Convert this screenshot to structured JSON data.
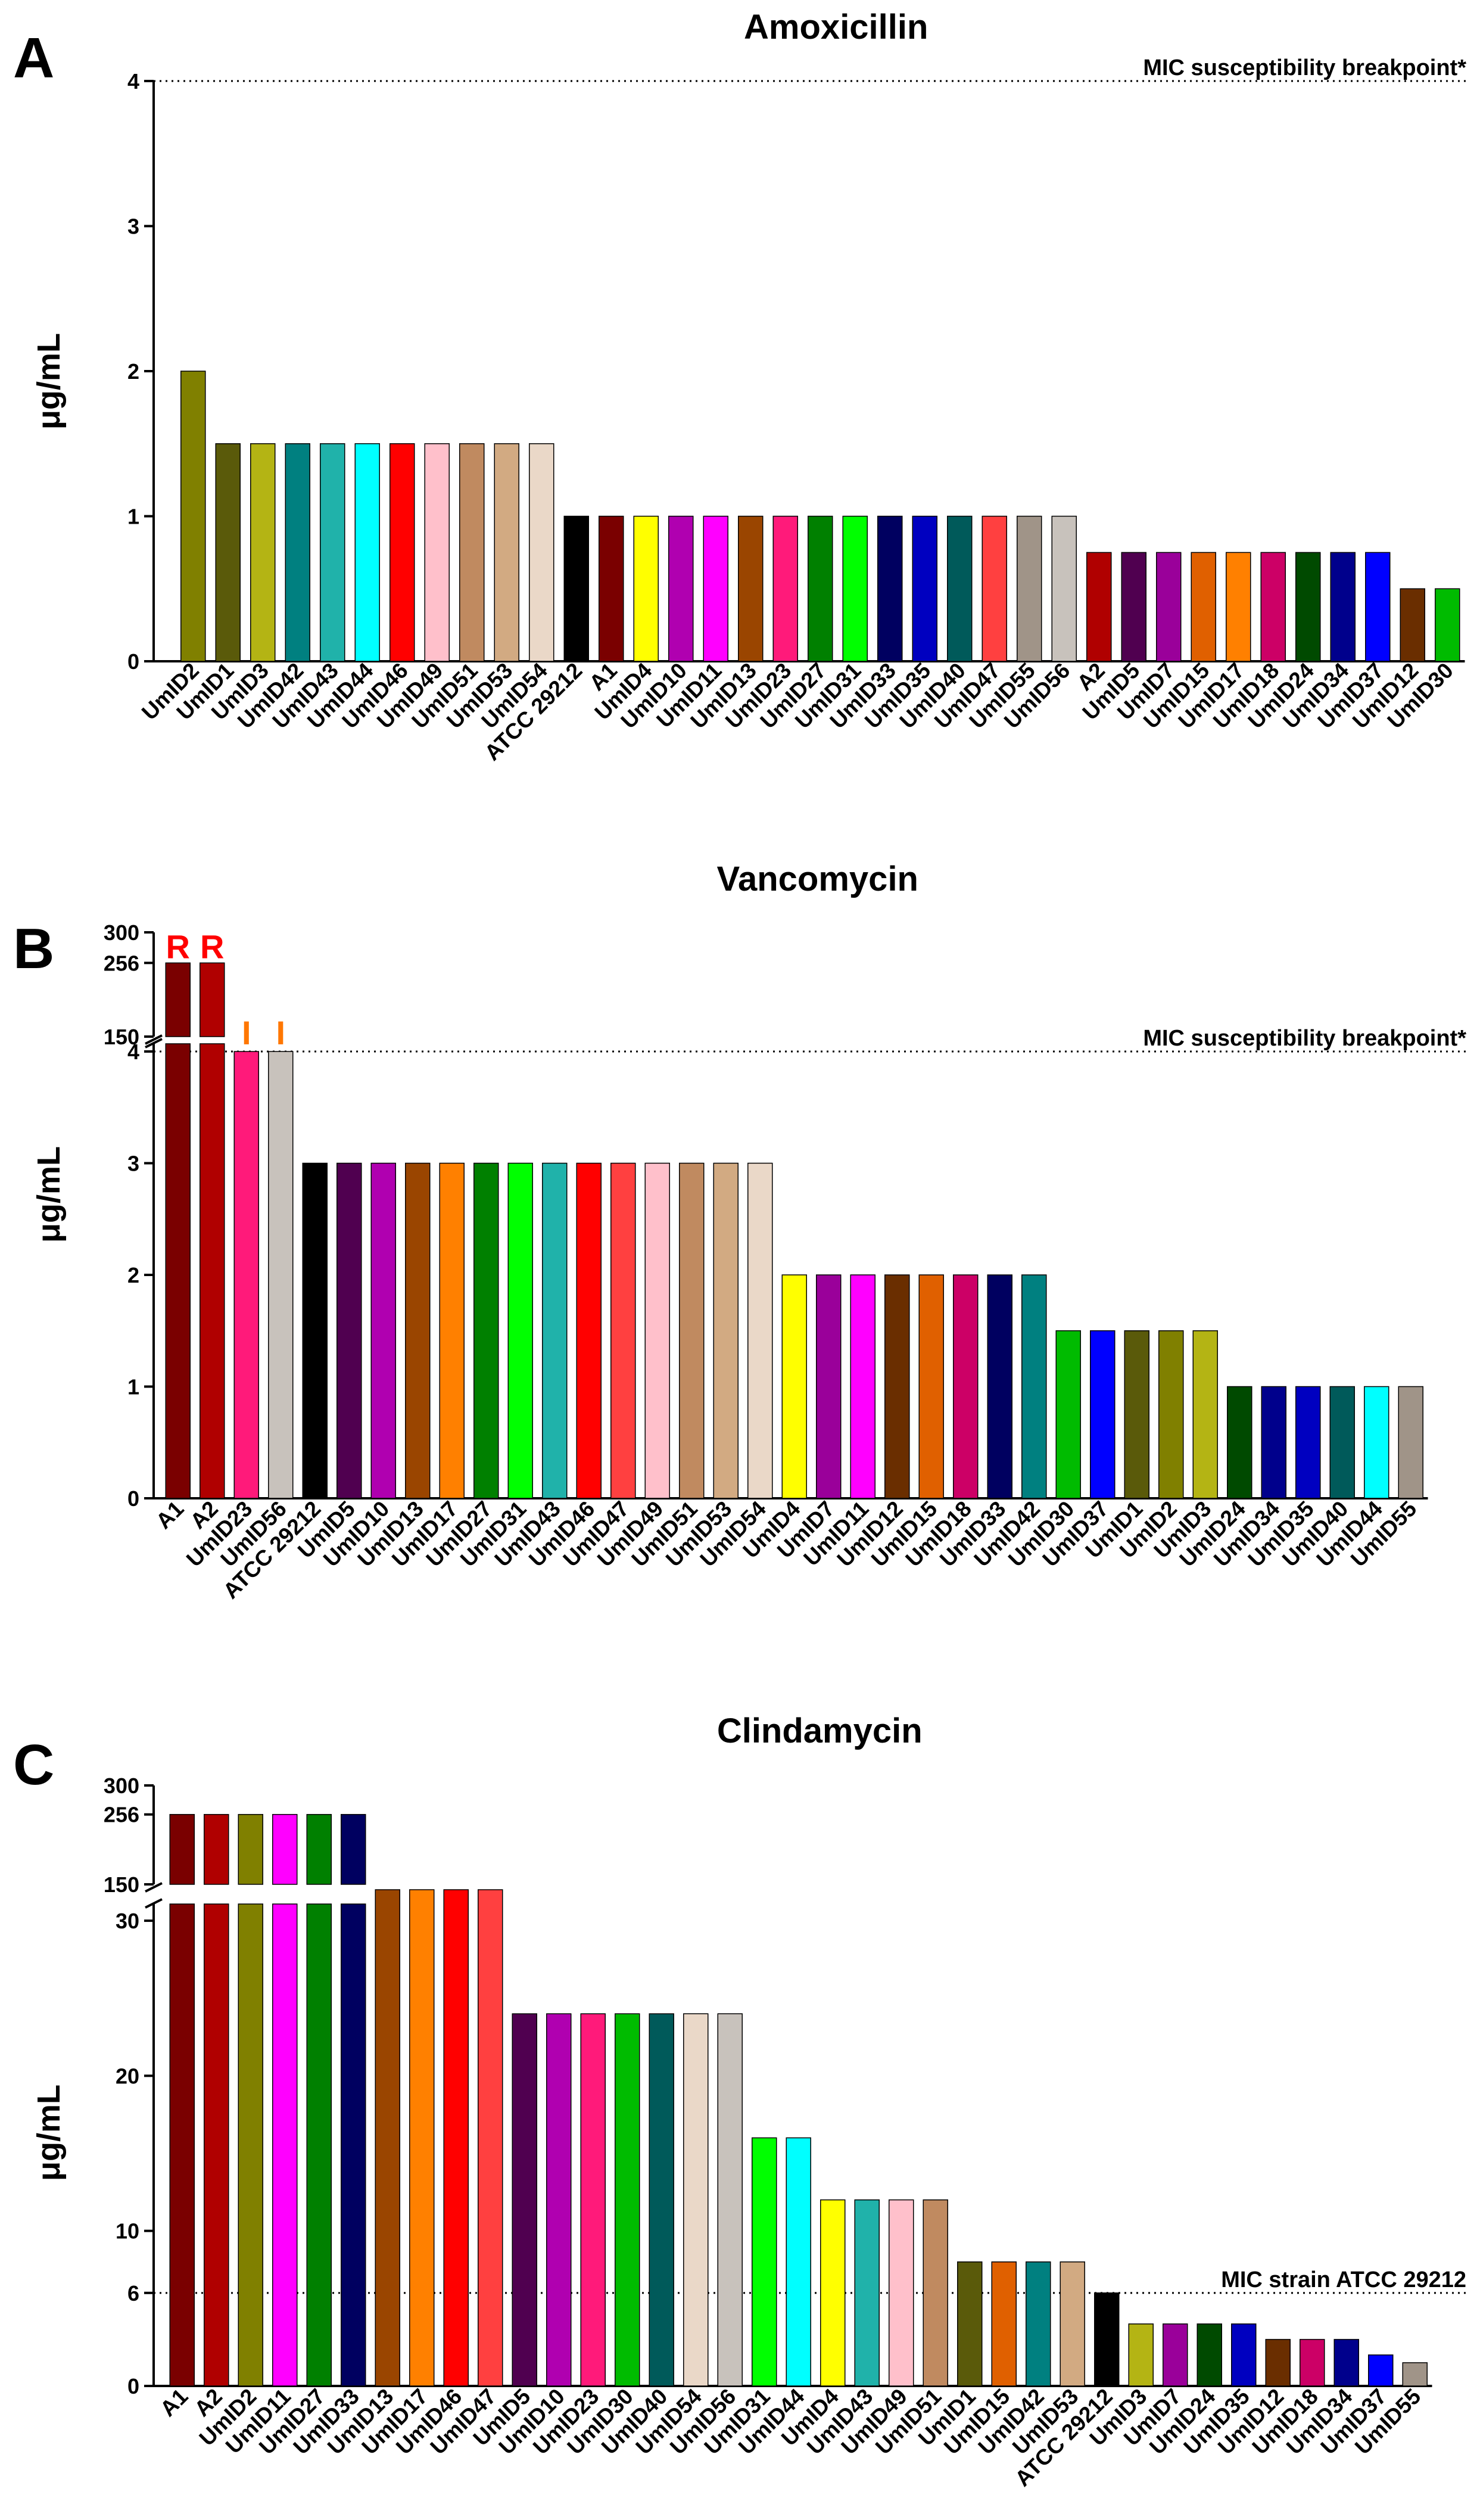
{
  "colors": {
    "UmID2": "#808000",
    "UmID1": "#5a5a0a",
    "UmID3": "#b4b414",
    "UmID42": "#008080",
    "UmID43": "#20b2aa",
    "UmID44": "#00ffff",
    "UmID46": "#ff0000",
    "UmID49": "#ffc0cb",
    "UmID51": "#c08a60",
    "UmID53": "#d2aa82",
    "UmID54": "#ead8c8",
    "ATCC 29212": "#000000",
    "A1": "#7a0000",
    "A2": "#b00000",
    "UmID4": "#ffff00",
    "UmID10": "#b000b0",
    "UmID11": "#ff00ff",
    "UmID13": "#9a4500",
    "UmID23": "#ff1a7a",
    "UmID27": "#008000",
    "UmID31": "#00ff00",
    "UmID33": "#000060",
    "UmID35": "#0000c0",
    "UmID40": "#005a5a",
    "UmID47": "#ff4040",
    "UmID55": "#a09488",
    "UmID56": "#c8c2bc",
    "UmID5": "#500050",
    "UmID7": "#9a009a",
    "UmID15": "#e06000",
    "UmID17": "#ff8000",
    "UmID18": "#cc0066",
    "UmID24": "#004a00",
    "UmID34": "#00008c",
    "UmID37": "#0000ff",
    "UmID12": "#6a2e00",
    "UmID30": "#00bb00",
    "resistant_mark": "#ff0000",
    "intermediate_mark": "#ff7700"
  },
  "chart_data": [
    {
      "panel": "A",
      "type": "bar",
      "title": "Amoxicillin",
      "ylabel": "μg/mL",
      "ylim": [
        0,
        4
      ],
      "yticks": [
        "0",
        "1",
        "2",
        "3",
        "4"
      ],
      "reference_line": {
        "value": 4,
        "label": "MIC susceptibility breakpoint*"
      },
      "categories": [
        "UmID2",
        "UmID1",
        "UmID3",
        "UmID42",
        "UmID43",
        "UmID44",
        "UmID46",
        "UmID49",
        "UmID51",
        "UmID53",
        "UmID54",
        "ATCC 29212",
        "A1",
        "UmID4",
        "UmID10",
        "UmID11",
        "UmID13",
        "UmID23",
        "UmID27",
        "UmID31",
        "UmID33",
        "UmID35",
        "UmID40",
        "UmID47",
        "UmID55",
        "UmID56",
        "A2",
        "UmID5",
        "UmID7",
        "UmID15",
        "UmID17",
        "UmID18",
        "UmID24",
        "UmID34",
        "UmID37",
        "UmID12",
        "UmID30"
      ],
      "values": [
        2,
        1.5,
        1.5,
        1.5,
        1.5,
        1.5,
        1.5,
        1.5,
        1.5,
        1.5,
        1.5,
        1,
        1,
        1,
        1,
        1,
        1,
        1,
        1,
        1,
        1,
        1,
        1,
        1,
        1,
        1,
        0.75,
        0.75,
        0.75,
        0.75,
        0.75,
        0.75,
        0.75,
        0.75,
        0.75,
        0.5,
        0.5
      ]
    },
    {
      "panel": "B",
      "type": "bar",
      "title": "Vancomycin",
      "ylabel": "μg/mL",
      "lower_range": [
        0,
        4
      ],
      "upper_range": [
        150,
        300
      ],
      "yticks_lower": [
        "0",
        "1",
        "2",
        "3",
        "4"
      ],
      "yticks_upper": [
        "150",
        "256",
        "300"
      ],
      "reference_line": {
        "value": 4,
        "label": "MIC susceptibility breakpoint*"
      },
      "categories": [
        "A1",
        "A2",
        "UmID23",
        "UmID56",
        "ATCC 29212",
        "UmID5",
        "UmID10",
        "UmID13",
        "UmID17",
        "UmID27",
        "UmID31",
        "UmID43",
        "UmID46",
        "UmID47",
        "UmID49",
        "UmID51",
        "UmID53",
        "UmID54",
        "UmID4",
        "UmID7",
        "UmID11",
        "UmID12",
        "UmID15",
        "UmID18",
        "UmID33",
        "UmID42",
        "UmID30",
        "UmID37",
        "UmID1",
        "UmID2",
        "UmID3",
        "UmID24",
        "UmID34",
        "UmID35",
        "UmID40",
        "UmID44",
        "UmID55"
      ],
      "values": [
        256,
        256,
        4,
        4,
        3,
        3,
        3,
        3,
        3,
        3,
        3,
        3,
        3,
        3,
        3,
        3,
        3,
        3,
        2,
        2,
        2,
        2,
        2,
        2,
        2,
        2,
        1.5,
        1.5,
        1.5,
        1.5,
        1.5,
        1,
        1,
        1,
        1,
        1,
        1
      ],
      "markers": [
        "R",
        "R",
        "I",
        "I"
      ]
    },
    {
      "panel": "C",
      "type": "bar",
      "title": "Clindamycin",
      "ylabel": "μg/mL",
      "lower_range": [
        0,
        32
      ],
      "upper_range": [
        150,
        300
      ],
      "yticks_lower": [
        "0",
        "6",
        "10",
        "20",
        "30"
      ],
      "yticks_upper": [
        "150",
        "256",
        "300"
      ],
      "reference_line": {
        "value": 6,
        "label": "MIC strain ATCC 29212"
      },
      "categories": [
        "A1",
        "A2",
        "UmID2",
        "UmID11",
        "UmID27",
        "UmID33",
        "UmID13",
        "UmID17",
        "UmID46",
        "UmID47",
        "UmID5",
        "UmID10",
        "UmID23",
        "UmID30",
        "UmID40",
        "UmID54",
        "UmID56",
        "UmID31",
        "UmID44",
        "UmID4",
        "UmID43",
        "UmID49",
        "UmID51",
        "UmID1",
        "UmID15",
        "UmID42",
        "UmID53",
        "ATCC 29212",
        "UmID3",
        "UmID7",
        "UmID24",
        "UmID35",
        "UmID12",
        "UmID18",
        "UmID34",
        "UmID37",
        "UmID55"
      ],
      "values": [
        256,
        256,
        256,
        256,
        256,
        256,
        32,
        32,
        32,
        32,
        24,
        24,
        24,
        24,
        24,
        24,
        24,
        16,
        16,
        12,
        12,
        12,
        12,
        8,
        8,
        8,
        8,
        6,
        4,
        4,
        4,
        4,
        3,
        3,
        3,
        2,
        1.5
      ]
    }
  ]
}
